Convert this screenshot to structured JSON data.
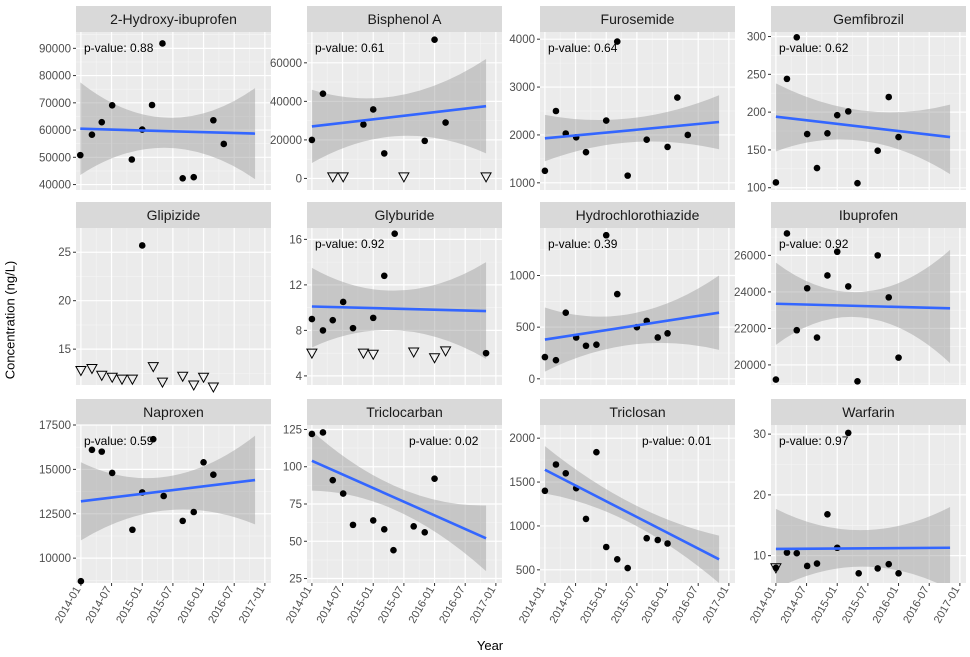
{
  "figure": {
    "ylabel": "Concentration (ng/L)",
    "xlabel": "Year"
  },
  "chart_data": {
    "type": "scatter",
    "facet": "wrap 4x3",
    "xticks": [
      "2014-01",
      "2014-07",
      "2015-01",
      "2015-07",
      "2016-01",
      "2016-07",
      "2017-01"
    ],
    "xlim": [
      "2013-12",
      "2017-02"
    ],
    "grid": true,
    "panels": [
      {
        "title": "2-Hydroxy-ibuprofen",
        "pvalue": "p-value: 0.88",
        "pvalue_pos": "left",
        "ylim": [
          38000,
          96000
        ],
        "yticks": [
          40000,
          50000,
          60000,
          70000,
          80000,
          90000
        ],
        "points": [
          [
            2013.99,
            50800
          ],
          [
            2014.18,
            58300
          ],
          [
            2014.34,
            62900
          ],
          [
            2014.51,
            69100
          ],
          [
            2014.83,
            49200
          ],
          [
            2015.0,
            60200
          ],
          [
            2015.16,
            69200
          ],
          [
            2015.33,
            91800
          ],
          [
            2015.66,
            42300
          ],
          [
            2015.84,
            42700
          ],
          [
            2016.16,
            63600
          ],
          [
            2016.33,
            54900
          ]
        ],
        "censored": [],
        "fit": [
          [
            2013.99,
            60500
          ],
          [
            2016.84,
            58700
          ]
        ],
        "band": [
          [
            2013.99,
            43500,
            77500
          ],
          [
            2015.4,
            53500,
            64500
          ],
          [
            2016.84,
            42000,
            75400
          ]
        ]
      },
      {
        "title": "Bisphenol A",
        "pvalue": "p-value: 0.61",
        "pvalue_pos": "left",
        "ylim": [
          -6000,
          76000
        ],
        "yticks": [
          0,
          20000,
          40000,
          60000
        ],
        "points": [
          [
            2014.0,
            20000
          ],
          [
            2014.18,
            44000
          ],
          [
            2014.84,
            28000
          ],
          [
            2015.0,
            35800
          ],
          [
            2015.18,
            13000
          ],
          [
            2015.84,
            19500
          ],
          [
            2016.0,
            72000
          ],
          [
            2016.18,
            29000
          ]
        ],
        "censored": [
          [
            2014.34,
            800
          ],
          [
            2014.51,
            800
          ],
          [
            2015.5,
            800
          ],
          [
            2016.84,
            800
          ]
        ],
        "fit": [
          [
            2014.0,
            27000
          ],
          [
            2016.84,
            37500
          ]
        ],
        "band": [
          [
            2014.0,
            8000,
            46000
          ],
          [
            2015.4,
            22000,
            43000
          ],
          [
            2016.84,
            13000,
            62000
          ]
        ]
      },
      {
        "title": "Furosemide",
        "pvalue": "p-value: 0.64",
        "pvalue_pos": "left",
        "ylim": [
          850,
          4150
        ],
        "yticks": [
          1000,
          2000,
          3000,
          4000
        ],
        "points": [
          [
            2014.0,
            1250
          ],
          [
            2014.18,
            2500
          ],
          [
            2014.34,
            2030
          ],
          [
            2014.51,
            1950
          ],
          [
            2014.67,
            1640
          ],
          [
            2015.0,
            2300
          ],
          [
            2015.18,
            3950
          ],
          [
            2015.35,
            1150
          ],
          [
            2015.66,
            1900
          ],
          [
            2016.0,
            1750
          ],
          [
            2016.16,
            2780
          ],
          [
            2016.33,
            2000
          ]
        ],
        "censored": [],
        "fit": [
          [
            2014.0,
            1930
          ],
          [
            2016.84,
            2270
          ]
        ],
        "band": [
          [
            2014.0,
            1450,
            2420
          ],
          [
            2015.4,
            1850,
            2350
          ],
          [
            2016.84,
            1700,
            2830
          ]
        ]
      },
      {
        "title": "Gemfibrozil",
        "pvalue": "p-value: 0.62",
        "pvalue_pos": "left",
        "ylim": [
          97,
          306
        ],
        "yticks": [
          100,
          150,
          200,
          250,
          300
        ],
        "points": [
          [
            2014.0,
            107
          ],
          [
            2014.18,
            244
          ],
          [
            2014.34,
            299
          ],
          [
            2014.51,
            171
          ],
          [
            2014.67,
            126
          ],
          [
            2014.84,
            172
          ],
          [
            2015.0,
            196
          ],
          [
            2015.18,
            201
          ],
          [
            2015.33,
            106
          ],
          [
            2015.66,
            149
          ],
          [
            2015.84,
            220
          ],
          [
            2016.0,
            167
          ]
        ],
        "censored": [],
        "fit": [
          [
            2014.0,
            194
          ],
          [
            2016.84,
            167
          ]
        ],
        "band": [
          [
            2014.0,
            148,
            238
          ],
          [
            2015.4,
            162,
            202
          ],
          [
            2016.84,
            118,
            210
          ]
        ]
      },
      {
        "title": "Glipizide",
        "pvalue": "",
        "pvalue_pos": "left",
        "ylim": [
          11.3,
          27.5
        ],
        "yticks": [
          15,
          20,
          25
        ],
        "points": [
          [
            2015.0,
            25.7
          ]
        ],
        "censored": [
          [
            2014.0,
            12.8
          ],
          [
            2014.18,
            13.0
          ],
          [
            2014.34,
            12.3
          ],
          [
            2014.51,
            12.1
          ],
          [
            2014.67,
            11.9
          ],
          [
            2014.84,
            11.9
          ],
          [
            2015.18,
            13.2
          ],
          [
            2015.33,
            11.6
          ],
          [
            2015.66,
            12.2
          ],
          [
            2015.84,
            11.3
          ],
          [
            2016.0,
            12.1
          ],
          [
            2016.16,
            11.1
          ]
        ],
        "fit": [],
        "band": []
      },
      {
        "title": "Glyburide",
        "pvalue": "p-value: 0.92",
        "pvalue_pos": "left",
        "ylim": [
          3.2,
          17.0
        ],
        "yticks": [
          4,
          8,
          12,
          16
        ],
        "points": [
          [
            2014.0,
            9.0
          ],
          [
            2014.18,
            8.0
          ],
          [
            2014.34,
            8.9
          ],
          [
            2014.51,
            10.5
          ],
          [
            2014.67,
            8.2
          ],
          [
            2015.0,
            9.1
          ],
          [
            2015.18,
            12.8
          ],
          [
            2015.35,
            16.5
          ],
          [
            2016.84,
            6.0
          ]
        ],
        "censored": [
          [
            2014.0,
            6.0
          ],
          [
            2014.84,
            6.0
          ],
          [
            2015.0,
            5.9
          ],
          [
            2015.66,
            6.1
          ],
          [
            2016.0,
            5.6
          ],
          [
            2016.18,
            6.2
          ]
        ],
        "fit": [
          [
            2014.0,
            10.1
          ],
          [
            2016.84,
            9.7
          ]
        ],
        "band": [
          [
            2014.0,
            6.5,
            13.5
          ],
          [
            2015.4,
            8.0,
            11.5
          ],
          [
            2016.84,
            5.5,
            14.0
          ]
        ]
      },
      {
        "title": "Hydrochlorothiazide",
        "pvalue": "p-value: 0.39",
        "pvalue_pos": "left",
        "ylim": [
          -60,
          1460
        ],
        "yticks": [
          0,
          500,
          1000
        ],
        "points": [
          [
            2014.0,
            210
          ],
          [
            2014.18,
            180
          ],
          [
            2014.34,
            640
          ],
          [
            2014.51,
            400
          ],
          [
            2014.67,
            320
          ],
          [
            2014.84,
            330
          ],
          [
            2015.0,
            1390
          ],
          [
            2015.18,
            820
          ],
          [
            2015.5,
            500
          ],
          [
            2015.66,
            560
          ],
          [
            2015.84,
            400
          ],
          [
            2016.0,
            440
          ]
        ],
        "censored": [],
        "fit": [
          [
            2014.0,
            380
          ],
          [
            2016.84,
            640
          ]
        ],
        "band": [
          [
            2014.0,
            70,
            690
          ],
          [
            2015.4,
            330,
            630
          ],
          [
            2016.84,
            280,
            1000
          ]
        ]
      },
      {
        "title": "Ibuprofen",
        "pvalue": "p-value: 0.92",
        "pvalue_pos": "left",
        "ylim": [
          18900,
          27500
        ],
        "yticks": [
          20000,
          22000,
          24000,
          26000
        ],
        "points": [
          [
            2014.0,
            19200
          ],
          [
            2014.18,
            27200
          ],
          [
            2014.34,
            21900
          ],
          [
            2014.51,
            24200
          ],
          [
            2014.67,
            21500
          ],
          [
            2014.84,
            24900
          ],
          [
            2015.0,
            26200
          ],
          [
            2015.18,
            24300
          ],
          [
            2015.33,
            19100
          ],
          [
            2015.66,
            26000
          ],
          [
            2015.84,
            23700
          ],
          [
            2016.0,
            20400
          ]
        ],
        "censored": [],
        "fit": [
          [
            2014.0,
            23350
          ],
          [
            2016.84,
            23100
          ]
        ],
        "band": [
          [
            2014.0,
            21100,
            25600
          ],
          [
            2015.4,
            22600,
            24000
          ],
          [
            2016.84,
            20100,
            26300
          ]
        ]
      },
      {
        "title": "Naproxen",
        "pvalue": "p-value: 0.59",
        "pvalue_pos": "left",
        "ylim": [
          8600,
          17500
        ],
        "yticks": [
          10000,
          12500,
          15000,
          17500
        ],
        "points": [
          [
            2014.0,
            8700
          ],
          [
            2014.18,
            16100
          ],
          [
            2014.34,
            16000
          ],
          [
            2014.51,
            14800
          ],
          [
            2014.84,
            11600
          ],
          [
            2015.0,
            13700
          ],
          [
            2015.18,
            16700
          ],
          [
            2015.35,
            13500
          ],
          [
            2015.66,
            12100
          ],
          [
            2015.84,
            12600
          ],
          [
            2016.0,
            15400
          ],
          [
            2016.16,
            14700
          ]
        ],
        "censored": [],
        "fit": [
          [
            2014.0,
            13200
          ],
          [
            2016.84,
            14400
          ]
        ],
        "band": [
          [
            2014.0,
            11000,
            15400
          ],
          [
            2015.4,
            12700,
            14600
          ],
          [
            2016.84,
            11900,
            16900
          ]
        ]
      },
      {
        "title": "Triclocarban",
        "pvalue": "p-value: 0.02",
        "pvalue_pos": "right",
        "ylim": [
          22,
          128
        ],
        "yticks": [
          25,
          50,
          75,
          100,
          125
        ],
        "points": [
          [
            2014.0,
            122
          ],
          [
            2014.18,
            123
          ],
          [
            2014.34,
            91
          ],
          [
            2014.51,
            82
          ],
          [
            2014.67,
            61
          ],
          [
            2015.0,
            64
          ],
          [
            2015.18,
            58
          ],
          [
            2015.33,
            44
          ],
          [
            2015.66,
            60
          ],
          [
            2015.84,
            56
          ],
          [
            2016.0,
            92
          ]
        ],
        "censored": [],
        "fit": [
          [
            2014.0,
            104
          ],
          [
            2016.84,
            52
          ]
        ],
        "band": [
          [
            2014.0,
            84,
            124
          ],
          [
            2015.4,
            70,
            86
          ],
          [
            2016.84,
            30,
            74
          ]
        ]
      },
      {
        "title": "Triclosan",
        "pvalue": "p-value: 0.01",
        "pvalue_pos": "right",
        "ylim": [
          350,
          2150
        ],
        "yticks": [
          500,
          1000,
          1500,
          2000
        ],
        "points": [
          [
            2014.0,
            1400
          ],
          [
            2014.18,
            1700
          ],
          [
            2014.34,
            1600
          ],
          [
            2014.51,
            1430
          ],
          [
            2014.67,
            1080
          ],
          [
            2014.84,
            1840
          ],
          [
            2015.0,
            760
          ],
          [
            2015.18,
            620
          ],
          [
            2015.35,
            520
          ],
          [
            2015.66,
            860
          ],
          [
            2015.84,
            840
          ],
          [
            2016.0,
            800
          ]
        ],
        "censored": [],
        "fit": [
          [
            2014.0,
            1640
          ],
          [
            2016.84,
            620
          ]
        ],
        "band": [
          [
            2014.0,
            1370,
            1910
          ],
          [
            2015.4,
            1030,
            1260
          ],
          [
            2016.84,
            350,
            890
          ]
        ]
      },
      {
        "title": "Warfarin",
        "pvalue": "p-value: 0.97",
        "pvalue_pos": "left",
        "ylim": [
          5.5,
          31.5
        ],
        "yticks": [
          10,
          20,
          30
        ],
        "points": [
          [
            2014.0,
            8.0
          ],
          [
            2014.18,
            10.5
          ],
          [
            2014.34,
            10.4
          ],
          [
            2014.51,
            8.3
          ],
          [
            2014.67,
            8.7
          ],
          [
            2014.84,
            16.8
          ],
          [
            2015.0,
            11.3
          ],
          [
            2015.18,
            30.2
          ],
          [
            2015.35,
            7.1
          ],
          [
            2015.66,
            7.9
          ],
          [
            2015.84,
            8.6
          ],
          [
            2016.0,
            7.1
          ]
        ],
        "censored": [
          [
            2014.0,
            8.0
          ]
        ],
        "fit": [
          [
            2014.0,
            11.1
          ],
          [
            2016.84,
            11.3
          ]
        ],
        "band": [
          [
            2014.0,
            4.5,
            17.7
          ],
          [
            2015.4,
            8.2,
            14.2
          ],
          [
            2016.84,
            4.5,
            18.0
          ]
        ]
      }
    ]
  }
}
